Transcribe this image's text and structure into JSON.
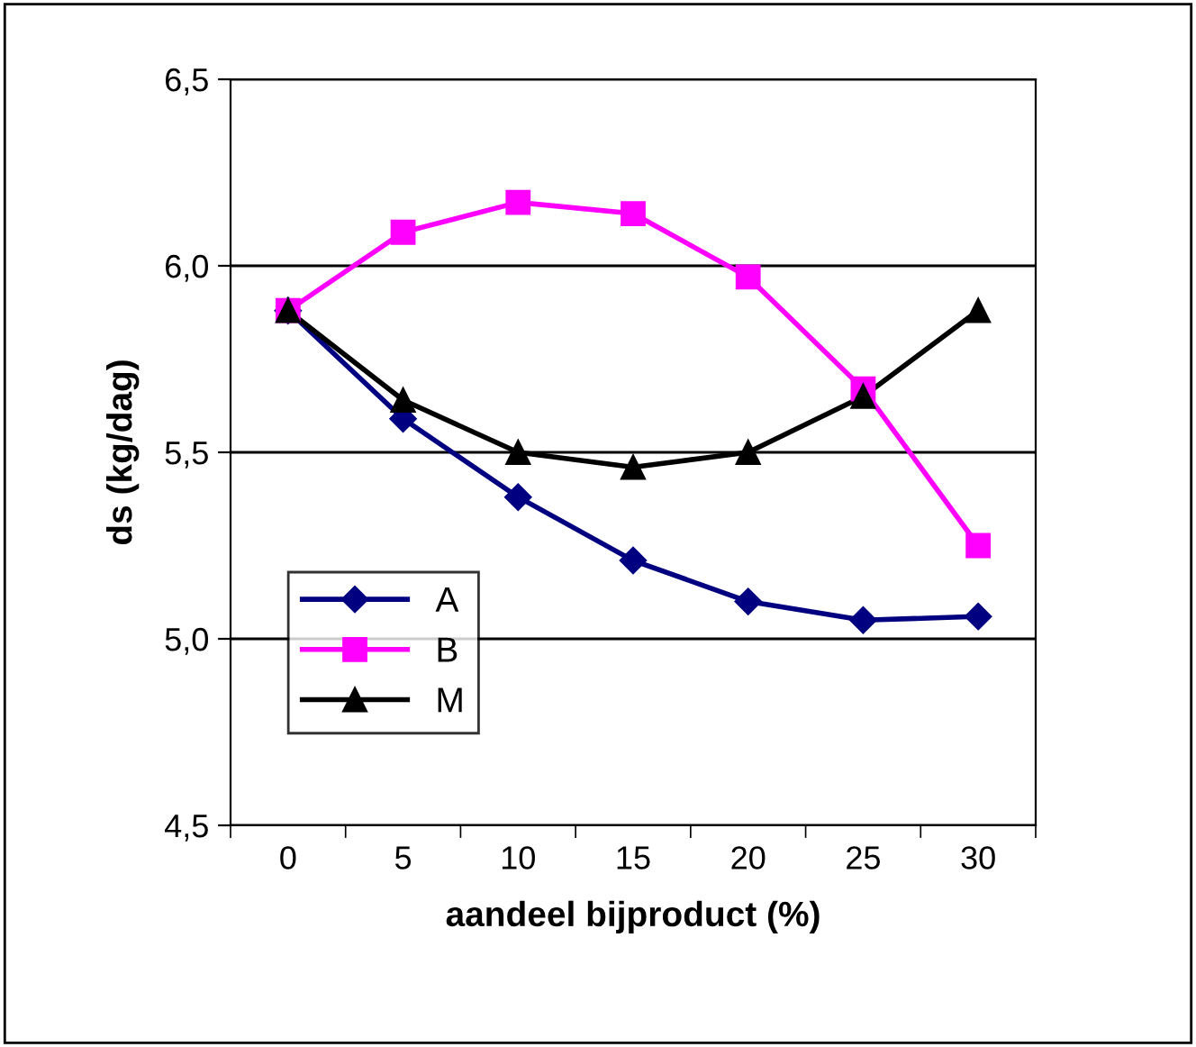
{
  "chart_data": {
    "type": "line",
    "xlabel": "aandeel bijproduct (%)",
    "ylabel": "ds (kg/dag)",
    "categories": [
      "0",
      "5",
      "10",
      "15",
      "20",
      "25",
      "30"
    ],
    "series": [
      {
        "name": "A",
        "color": "#000080",
        "marker": "diamond",
        "values": [
          5.88,
          5.59,
          5.38,
          5.21,
          5.1,
          5.05,
          5.06
        ]
      },
      {
        "name": "B",
        "color": "#ff00ff",
        "marker": "square",
        "values": [
          5.88,
          6.09,
          6.17,
          6.14,
          5.97,
          5.67,
          5.25
        ]
      },
      {
        "name": "M",
        "color": "#000000",
        "marker": "triangle",
        "values": [
          5.88,
          5.64,
          5.5,
          5.46,
          5.5,
          5.65,
          5.88
        ]
      }
    ],
    "ylim": [
      4.5,
      6.5
    ],
    "yticks": [
      {
        "value": 4.5,
        "label": "4,5"
      },
      {
        "value": 5.0,
        "label": "5,0"
      },
      {
        "value": 5.5,
        "label": "5,5"
      },
      {
        "value": 6.0,
        "label": "6,0"
      },
      {
        "value": 6.5,
        "label": "6,5"
      }
    ],
    "grid": "y",
    "legend": "center left"
  }
}
